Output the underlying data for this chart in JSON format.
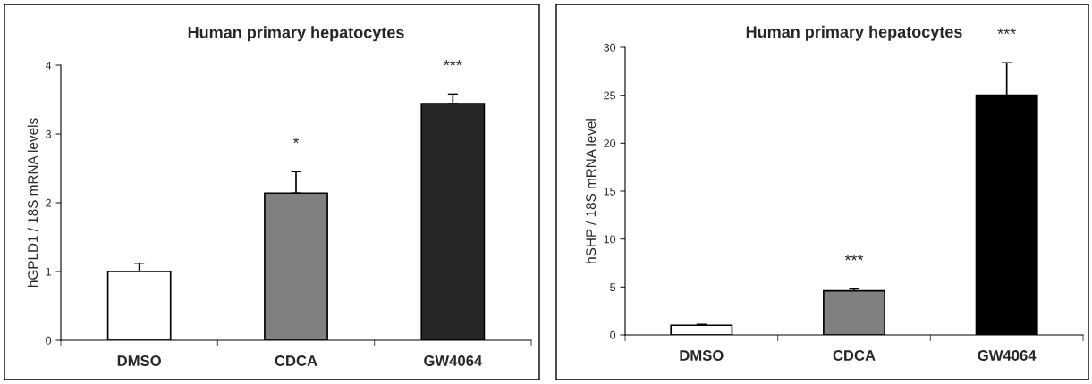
{
  "chart_data": [
    {
      "type": "bar",
      "title": "Human primary hepatocytes",
      "ylabel": "hGPLD1 / 18S mRNA levels",
      "categories": [
        "DMSO",
        "CDCA",
        "GW4064"
      ],
      "values": [
        1.0,
        2.14,
        3.44
      ],
      "colors": [
        "#ffffff",
        "#808080",
        "#262626"
      ],
      "errors": [
        [
          1.0,
          1.12
        ],
        [
          2.14,
          2.45
        ],
        [
          3.44,
          3.58
        ]
      ],
      "ylim": [
        0,
        4
      ],
      "yticks": [
        0,
        1,
        2,
        3,
        4
      ],
      "annotations": [
        "*",
        "***"
      ]
    },
    {
      "type": "bar",
      "title": "Human primary hepatocytes",
      "ylabel": "hSHP / 18S mRNA level",
      "categories": [
        "DMSO",
        "CDCA",
        "GW4064"
      ],
      "values": [
        1.0,
        4.6,
        25.0
      ],
      "colors": [
        "#ffffff",
        "#808080",
        "#000000"
      ],
      "errors": [
        [
          1.0,
          1.1
        ],
        [
          4.6,
          4.8
        ],
        [
          25.0,
          28.4
        ]
      ],
      "ylim": [
        0,
        30
      ],
      "yticks": [
        0,
        5,
        10,
        15,
        20,
        25,
        30
      ],
      "annotations": [
        "***",
        "***"
      ]
    }
  ]
}
